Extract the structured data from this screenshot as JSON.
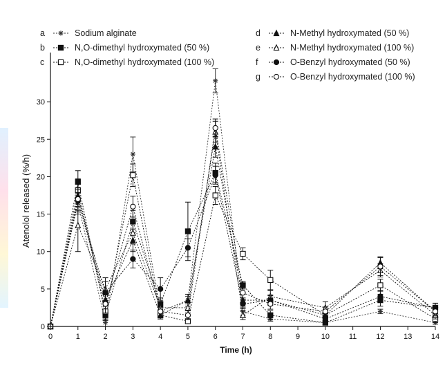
{
  "chart_data": {
    "type": "line",
    "xlabel": "Time (h)",
    "ylabel": "Atenolol released (%/h)",
    "x": [
      0,
      1,
      2,
      3,
      4,
      5,
      6,
      7,
      8,
      10,
      12,
      14
    ],
    "x_ticks": [
      0,
      1,
      2,
      3,
      4,
      5,
      6,
      7,
      8,
      9,
      10,
      11,
      12,
      13,
      14
    ],
    "y_ticks": [
      0,
      5,
      10,
      15,
      20,
      25,
      30
    ],
    "xlim": [
      0,
      14
    ],
    "ylim": [
      0,
      35
    ],
    "grid": false,
    "legend_position": "top",
    "series": [
      {
        "letter": "a",
        "name": "Sodium alginate",
        "marker": "asterisk",
        "color": "#333333",
        "values": [
          0,
          16.5,
          0.5,
          23.0,
          2.0,
          3.5,
          32.8,
          2.0,
          1.0,
          0.5,
          2.0,
          0.5
        ],
        "errors": [
          0,
          1.5,
          0.5,
          2.3,
          0.5,
          0.5,
          1.6,
          0.5,
          0.3,
          0.2,
          0.3,
          0.2
        ]
      },
      {
        "letter": "b",
        "name": "N,O-dimethyl hydroxymated (50 %)",
        "marker": "filled-square",
        "color": "#111111",
        "values": [
          0,
          19.3,
          1.5,
          14.0,
          3.0,
          12.7,
          20.5,
          5.5,
          1.5,
          0.5,
          3.5,
          2.5
        ],
        "errors": [
          0,
          1.5,
          0.7,
          1.5,
          0.8,
          3.9,
          1.3,
          0.5,
          0.6,
          0.3,
          0.8,
          0.6
        ]
      },
      {
        "letter": "c",
        "name": "N,O-dimethyl hydroxymated (100 %)",
        "marker": "open-square",
        "color": "#111111",
        "values": [
          0,
          18.2,
          2.0,
          20.2,
          1.5,
          0.7,
          17.5,
          9.7,
          6.2,
          1.5,
          5.5,
          1.0
        ],
        "errors": [
          0,
          1.5,
          1.0,
          1.5,
          0.5,
          0.3,
          1.2,
          0.8,
          1.3,
          0.4,
          0.8,
          0.5
        ]
      },
      {
        "letter": "d",
        "name": "N-Methyl hydroxymated (50 %)",
        "marker": "filled-triangle",
        "color": "#111111",
        "values": [
          0,
          17.5,
          3.5,
          11.5,
          1.5,
          3.5,
          24.0,
          3.5,
          3.5,
          1.5,
          8.5,
          2.0
        ],
        "errors": [
          0,
          1.5,
          0.8,
          1.5,
          0.5,
          0.8,
          1.4,
          0.8,
          0.7,
          0.4,
          0.8,
          0.6
        ]
      },
      {
        "letter": "e",
        "name": "N-Methyl hydroxymated (100 %)",
        "marker": "open-triangle",
        "color": "#111111",
        "values": [
          0,
          13.5,
          5.0,
          12.5,
          2.5,
          2.5,
          26.0,
          1.5,
          4.0,
          2.5,
          7.5,
          1.5
        ],
        "errors": [
          0,
          3.5,
          1.5,
          1.5,
          0.7,
          0.7,
          1.4,
          0.6,
          0.8,
          0.8,
          0.9,
          0.5
        ]
      },
      {
        "letter": "f",
        "name": "O-Benzyl hydroxymated (50 %)",
        "marker": "filled-circle",
        "color": "#111111",
        "values": [
          0,
          16.8,
          4.5,
          9.0,
          5.0,
          10.5,
          20.2,
          3.0,
          3.5,
          1.0,
          4.0,
          2.5
        ],
        "errors": [
          0,
          1.5,
          1.5,
          1.2,
          1.5,
          1.2,
          1.2,
          0.6,
          0.6,
          0.4,
          0.8,
          0.6
        ]
      },
      {
        "letter": "g",
        "name": "O-Benzyl hydroxymated (100 %)",
        "marker": "open-circle",
        "color": "#111111",
        "values": [
          0,
          17.0,
          3.0,
          16.0,
          2.0,
          1.5,
          26.5,
          4.5,
          3.0,
          2.0,
          8.0,
          2.0
        ],
        "errors": [
          0,
          1.5,
          1.2,
          1.4,
          0.6,
          0.6,
          1.2,
          0.7,
          0.7,
          0.6,
          1.2,
          0.6
        ]
      }
    ]
  }
}
